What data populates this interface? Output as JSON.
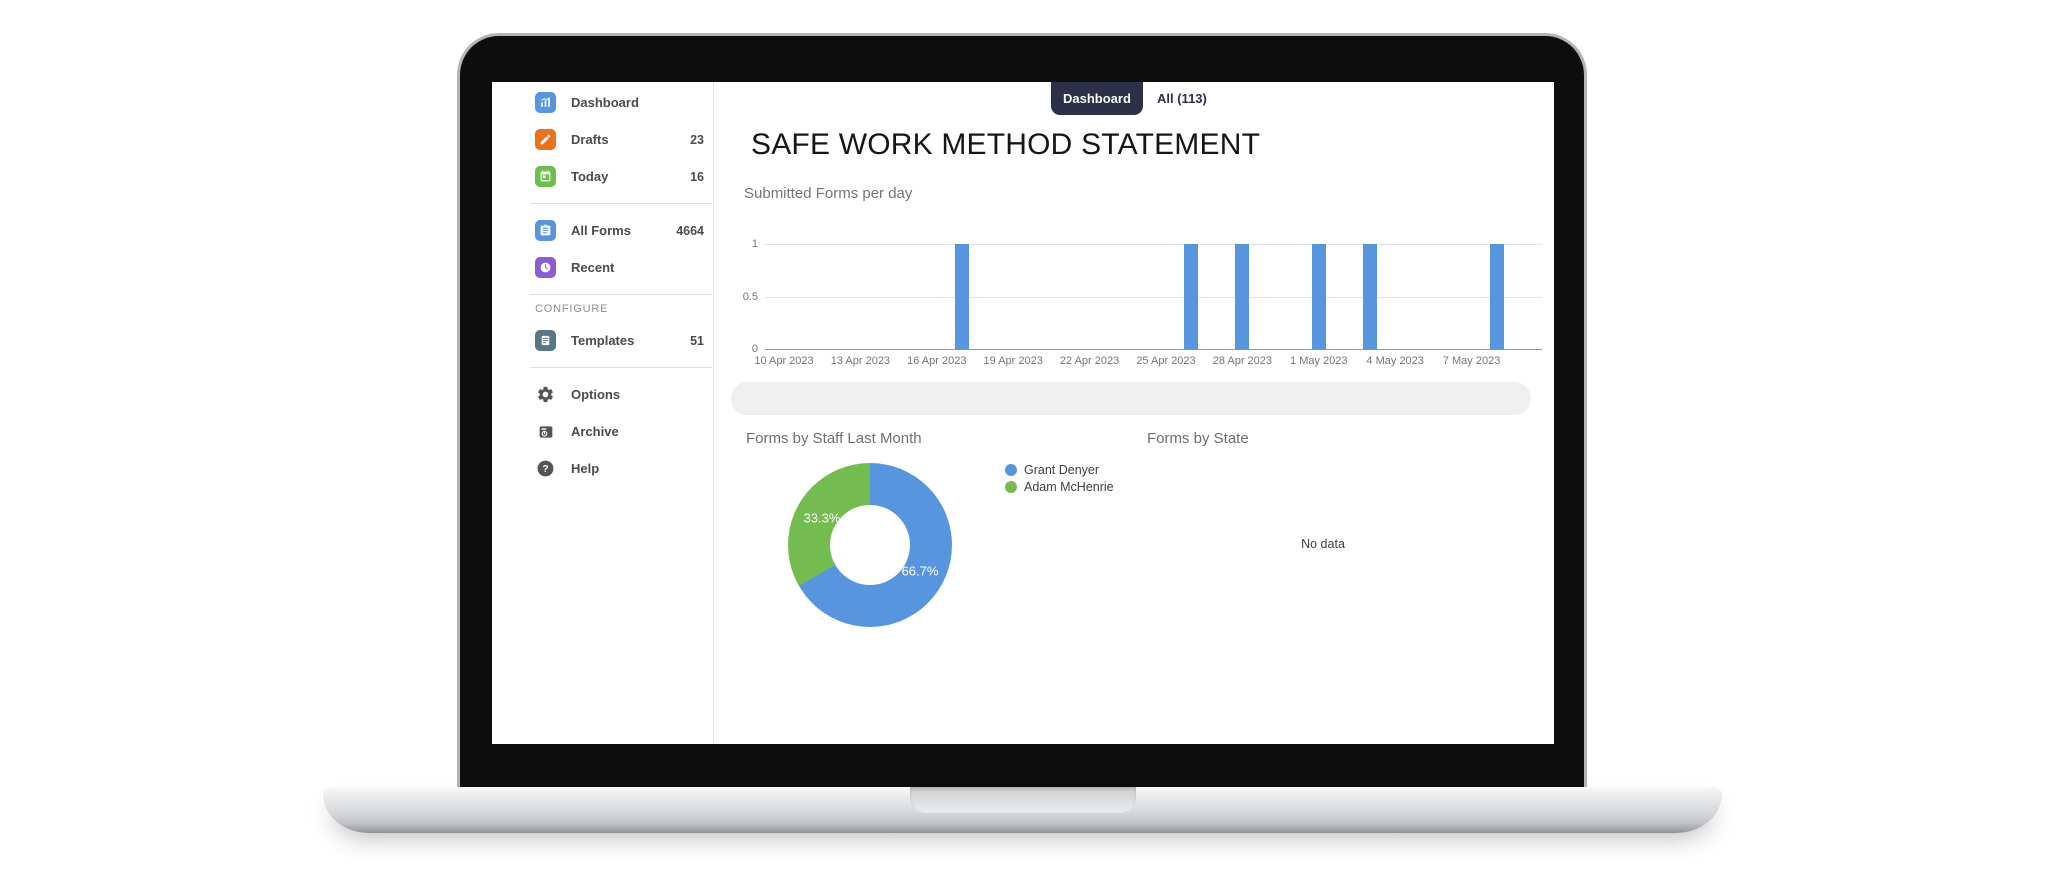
{
  "tabs": [
    {
      "label": "Dashboard",
      "active": true
    },
    {
      "label": "All (113)",
      "active": false
    }
  ],
  "main": {
    "title": "SAFE WORK METHOD STATEMENT"
  },
  "sidebar": {
    "section_label": "CONFIGURE",
    "items": [
      {
        "label": "Dashboard",
        "count": "",
        "icon": "dashboard-chart-icon",
        "color": "#5795de"
      },
      {
        "label": "Drafts",
        "count": "23",
        "icon": "pencil-icon",
        "color": "#e8731a"
      },
      {
        "label": "Today",
        "count": "16",
        "icon": "calendar-icon",
        "color": "#6cbf4e"
      },
      {
        "label": "All Forms",
        "count": "4664",
        "icon": "clipboard-icon",
        "color": "#5795de"
      },
      {
        "label": "Recent",
        "count": "",
        "icon": "clock-icon",
        "color": "#8d5bd4"
      },
      {
        "label": "Templates",
        "count": "51",
        "icon": "list-icon",
        "color": "#587683"
      },
      {
        "label": "Options",
        "count": "",
        "icon": "gear-icon",
        "color": "#555555"
      },
      {
        "label": "Archive",
        "count": "",
        "icon": "archive-icon",
        "color": "#555555"
      },
      {
        "label": "Help",
        "count": "",
        "icon": "question-icon",
        "color": "#555555"
      }
    ]
  },
  "chart_data": [
    {
      "type": "bar",
      "title": "Submitted Forms per day",
      "bar_color": "#5795de",
      "grid": true,
      "ylim": [
        0,
        1
      ],
      "y_ticks": [
        0,
        0.5,
        1
      ],
      "x_start": "10 Apr 2023",
      "x_tick_interval_days": 3,
      "x_tick_labels": [
        "10 Apr 2023",
        "13 Apr 2023",
        "16 Apr 2023",
        "19 Apr 2023",
        "22 Apr 2023",
        "25 Apr 2023",
        "28 Apr 2023",
        "1 May 2023",
        "4 May 2023",
        "7 May 2023"
      ],
      "bars": [
        {
          "date": "17 Apr 2023",
          "day_offset": 7,
          "value": 1
        },
        {
          "date": "26 Apr 2023",
          "day_offset": 16,
          "value": 1
        },
        {
          "date": "28 Apr 2023",
          "day_offset": 18,
          "value": 1
        },
        {
          "date": "1 May 2023",
          "day_offset": 21,
          "value": 1
        },
        {
          "date": "3 May 2023",
          "day_offset": 23,
          "value": 1
        },
        {
          "date": "8 May 2023",
          "day_offset": 28,
          "value": 1
        }
      ]
    },
    {
      "type": "pie",
      "donut": true,
      "title": "Forms by Staff Last Month",
      "legend_position": "right",
      "slices": [
        {
          "label": "Grant Denyer",
          "value": 66.7,
          "display": "66.7%",
          "color": "#5795de"
        },
        {
          "label": "Adam McHenrie",
          "value": 33.3,
          "display": "33.3%",
          "color": "#74bc50"
        }
      ]
    },
    {
      "type": "none",
      "title": "Forms by State",
      "empty_text": "No data"
    }
  ]
}
